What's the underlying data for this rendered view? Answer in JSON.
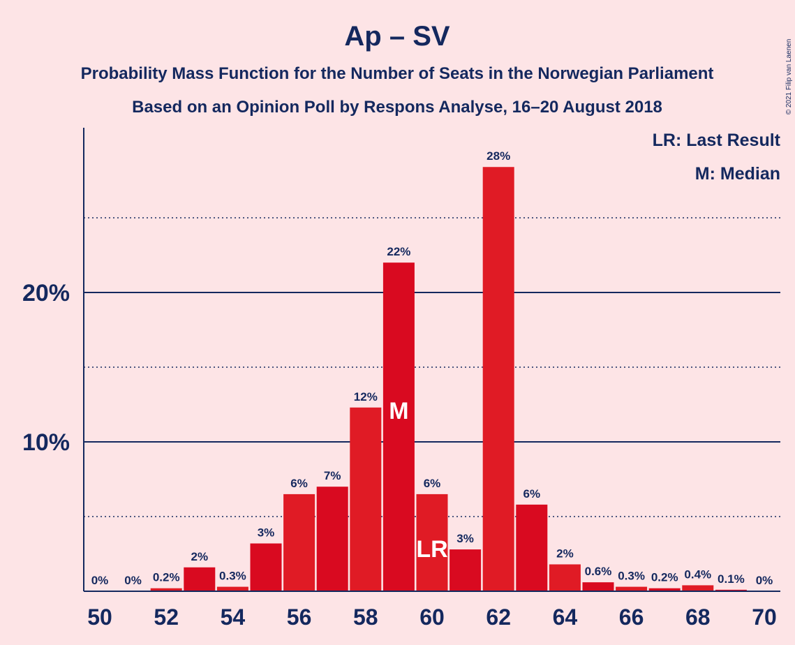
{
  "title": "Ap – SV",
  "subtitle1": "Probability Mass Function for the Number of Seats in the Norwegian Parliament",
  "subtitle2": "Based on an Opinion Poll by Respons Analyse, 16–20 August 2018",
  "copyright": "© 2021 Filip van Laenen",
  "legend": {
    "lr": "LR: Last Result",
    "m": "M: Median"
  },
  "colors": {
    "background": "#fde4e6",
    "text": "#14285e",
    "bar_a": "#e01b25",
    "bar_b": "#d90a20",
    "axis": "#14285e"
  },
  "chart_data": {
    "type": "bar",
    "x": [
      50,
      51,
      52,
      53,
      54,
      55,
      56,
      57,
      58,
      59,
      60,
      61,
      62,
      63,
      64,
      65,
      66,
      67,
      68,
      69,
      70
    ],
    "values": [
      0,
      0,
      0.2,
      1.6,
      0.3,
      3.2,
      6.5,
      7.0,
      12.3,
      22.0,
      6.5,
      2.8,
      28.4,
      5.8,
      1.8,
      0.6,
      0.3,
      0.2,
      0.4,
      0.1,
      0
    ],
    "labels": [
      "0%",
      "0%",
      "0.2%",
      "2%",
      "0.3%",
      "3%",
      "6%",
      "7%",
      "12%",
      "22%",
      "6%",
      "3%",
      "28%",
      "6%",
      "2%",
      "0.6%",
      "0.3%",
      "0.2%",
      "0.4%",
      "0.1%",
      "0%"
    ],
    "xticks": [
      "50",
      "52",
      "54",
      "56",
      "58",
      "60",
      "62",
      "64",
      "66",
      "68",
      "70"
    ],
    "yticks": [
      "10%",
      "20%"
    ],
    "ylim": [
      0,
      31
    ],
    "grid": "major solid at 10% and 20%, dotted at 5% intervals",
    "median": {
      "seat": 59,
      "marker": "M"
    },
    "last_result": {
      "seat": 60,
      "marker": "LR"
    },
    "legend_position": "top-right"
  }
}
